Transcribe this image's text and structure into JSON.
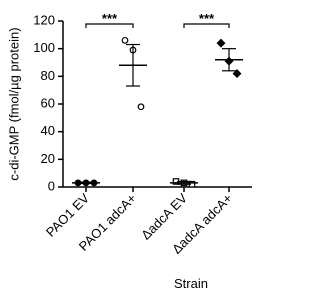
{
  "chart_data": {
    "type": "dot",
    "y_label": "c-di-GMP  (fmol/µg protein)",
    "x_label": "Strain",
    "categories": [
      "PAO1 EV",
      "PAO1 adcA+",
      "ΔadcA EV",
      "ΔadcA adcA+"
    ],
    "points": [
      [
        3,
        3,
        3
      ],
      [
        106,
        99,
        58
      ],
      [
        4,
        3,
        2
      ],
      [
        104,
        91,
        82
      ]
    ],
    "means": [
      3,
      88,
      3,
      92
    ],
    "errors": [
      0.5,
      15,
      1,
      8
    ],
    "markers": [
      "filled-circle",
      "open-circle",
      "open-square",
      "filled-diamond"
    ],
    "color": "#000000",
    "ylim": [
      0,
      120
    ],
    "yticks": [
      0,
      20,
      40,
      60,
      80,
      100,
      120
    ],
    "annotations": [
      {
        "from": 0,
        "to": 1,
        "label": "***"
      },
      {
        "from": 2,
        "to": 3,
        "label": "***"
      }
    ]
  }
}
